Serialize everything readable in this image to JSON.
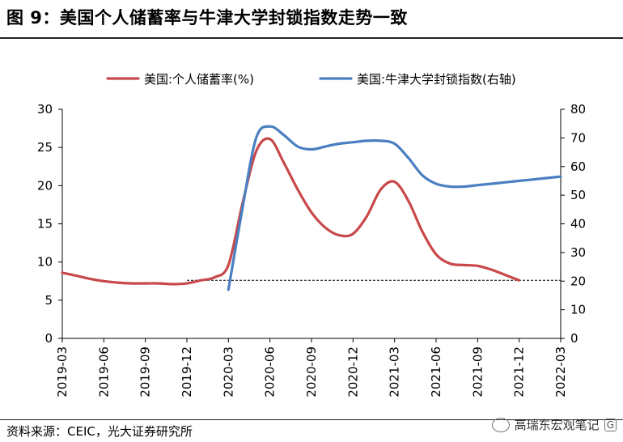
{
  "figure": {
    "title": "图 9：美国个人储蓄率与牛津大学封锁指数走势一致",
    "source": "资料来源：CEIC，光大证券研究所",
    "watermark": "高瑞东宏观笔记",
    "watermark_badge": "格隆汇"
  },
  "chart_data": {
    "type": "line",
    "title": "图 9：美国个人储蓄率与牛津大学封锁指数走势一致",
    "x_ticks": [
      "2019-03",
      "2019-06",
      "2019-09",
      "2019-12",
      "2020-03",
      "2020-06",
      "2020-09",
      "2020-12",
      "2021-03",
      "2021-06",
      "2021-09",
      "2021-12",
      "2022-03"
    ],
    "left_axis": {
      "min": 0,
      "max": 30,
      "ticks": [
        0,
        5,
        10,
        15,
        20,
        25,
        30
      ]
    },
    "right_axis": {
      "min": 0,
      "max": 80,
      "ticks": [
        0,
        10,
        20,
        30,
        40,
        50,
        60,
        70,
        80
      ]
    },
    "legend_position": "top",
    "series": [
      {
        "name": "美国:个人储蓄率(%)",
        "axis": "left",
        "color": "#c9484a",
        "points": [
          [
            "2019-03",
            8.6
          ],
          [
            "2019-04",
            8.2
          ],
          [
            "2019-05",
            7.8
          ],
          [
            "2019-06",
            7.5
          ],
          [
            "2019-07",
            7.3
          ],
          [
            "2019-08",
            7.2
          ],
          [
            "2019-09",
            7.2
          ],
          [
            "2019-10",
            7.2
          ],
          [
            "2019-11",
            7.1
          ],
          [
            "2019-12",
            7.2
          ],
          [
            "2020-01",
            7.6
          ],
          [
            "2020-02",
            8.0
          ],
          [
            "2020-03",
            9.6
          ],
          [
            "2020-04",
            17.5
          ],
          [
            "2020-05",
            24.5
          ],
          [
            "2020-06",
            26.1
          ],
          [
            "2020-07",
            23.0
          ],
          [
            "2020-08",
            19.5
          ],
          [
            "2020-09",
            16.5
          ],
          [
            "2020-10",
            14.5
          ],
          [
            "2020-11",
            13.5
          ],
          [
            "2020-12",
            13.7
          ],
          [
            "2021-01",
            16.0
          ],
          [
            "2021-02",
            19.5
          ],
          [
            "2021-03",
            20.5
          ],
          [
            "2021-04",
            18.0
          ],
          [
            "2021-05",
            14.0
          ],
          [
            "2021-06",
            11.0
          ],
          [
            "2021-07",
            9.8
          ],
          [
            "2021-08",
            9.6
          ],
          [
            "2021-09",
            9.5
          ],
          [
            "2021-10",
            9.0
          ],
          [
            "2021-11",
            8.3
          ],
          [
            "2021-12",
            7.6
          ]
        ]
      },
      {
        "name": "美国:牛津大学封锁指数(右轴)",
        "axis": "right",
        "color": "#4a7fc1",
        "points": [
          [
            "2020-03",
            17
          ],
          [
            "2020-04",
            45
          ],
          [
            "2020-05",
            70
          ],
          [
            "2020-06",
            74
          ],
          [
            "2020-07",
            71
          ],
          [
            "2020-08",
            67
          ],
          [
            "2020-09",
            66
          ],
          [
            "2020-10",
            67
          ],
          [
            "2020-11",
            68
          ],
          [
            "2020-12",
            68.5
          ],
          [
            "2021-01",
            69
          ],
          [
            "2021-02",
            69
          ],
          [
            "2021-03",
            68
          ],
          [
            "2021-04",
            63
          ],
          [
            "2021-05",
            57
          ],
          [
            "2021-06",
            54
          ],
          [
            "2021-07",
            53
          ],
          [
            "2021-08",
            53
          ],
          [
            "2021-09",
            53.5
          ],
          [
            "2021-10",
            54
          ],
          [
            "2021-11",
            54.5
          ],
          [
            "2021-12",
            55
          ],
          [
            "2022-01",
            55.5
          ],
          [
            "2022-02",
            56
          ],
          [
            "2022-03",
            56.5
          ]
        ]
      }
    ],
    "reference_line": {
      "axis": "left",
      "value": 7.6,
      "from": "2019-12",
      "to": "2022-03",
      "style": "dashed"
    }
  }
}
